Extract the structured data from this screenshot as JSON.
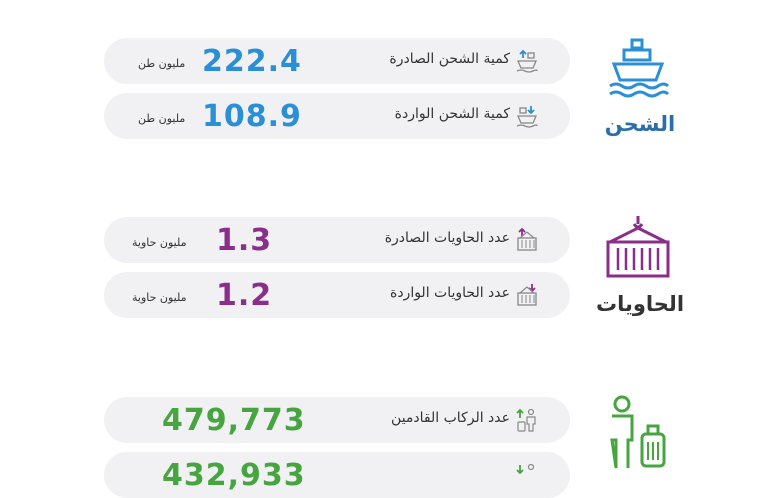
{
  "colors": {
    "shipping": "#2a8fd6",
    "containers": "#8a2e8a",
    "passengers": "#46a53f"
  },
  "shipping": {
    "title": "الشحن",
    "icon": "ship-icon",
    "rows": [
      {
        "label": "كمية الشحن الصادرة",
        "value": "222.4",
        "unit": "مليون طن",
        "icon": "ship-export-icon"
      },
      {
        "label": "كمية الشحن الواردة",
        "value": "108.9",
        "unit": "مليون طن",
        "icon": "ship-import-icon"
      }
    ]
  },
  "containers": {
    "title": "الحاويات",
    "icon": "container-crane-icon",
    "rows": [
      {
        "label": "عدد الحاويات الصادرة",
        "value": "1.3",
        "unit": "مليون حاوية",
        "icon": "container-export-icon"
      },
      {
        "label": "عدد الحاويات الواردة",
        "value": "1.2",
        "unit": "مليون حاوية",
        "icon": "container-import-icon"
      }
    ]
  },
  "passengers": {
    "icon": "passenger-luggage-icon",
    "rows": [
      {
        "label": "عدد الركاب القادمين",
        "value": "479,773",
        "icon": "passenger-arrival-icon"
      },
      {
        "label": "",
        "value": "432,933",
        "icon": "passenger-departure-icon"
      }
    ]
  }
}
